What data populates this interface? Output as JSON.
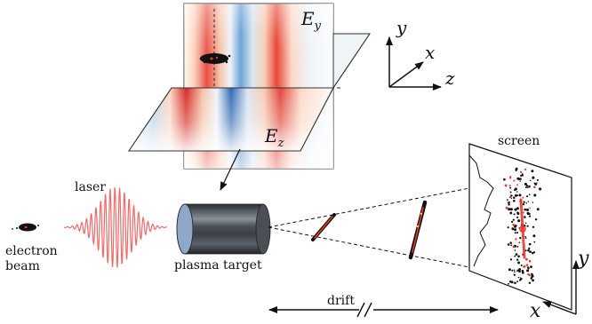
{
  "labels": {
    "ey": "E",
    "ey_sub": "y",
    "ez": "E",
    "ez_sub": "z",
    "axis_y": "y",
    "axis_x": "x",
    "axis_z": "z",
    "laser": "laser",
    "electron_line1": "electron",
    "electron_line2": "beam",
    "plasma_target": "plasma target",
    "screen": "screen",
    "drift": "drift",
    "screen_y": "y",
    "screen_x": "x"
  },
  "colors": {
    "field_positive": "#d7191c",
    "field_negative": "#2b6cb0",
    "laser_pulse": "#f06a6a",
    "plasma_target": "#3a3f45",
    "target_face": "#8fa7c9"
  }
}
